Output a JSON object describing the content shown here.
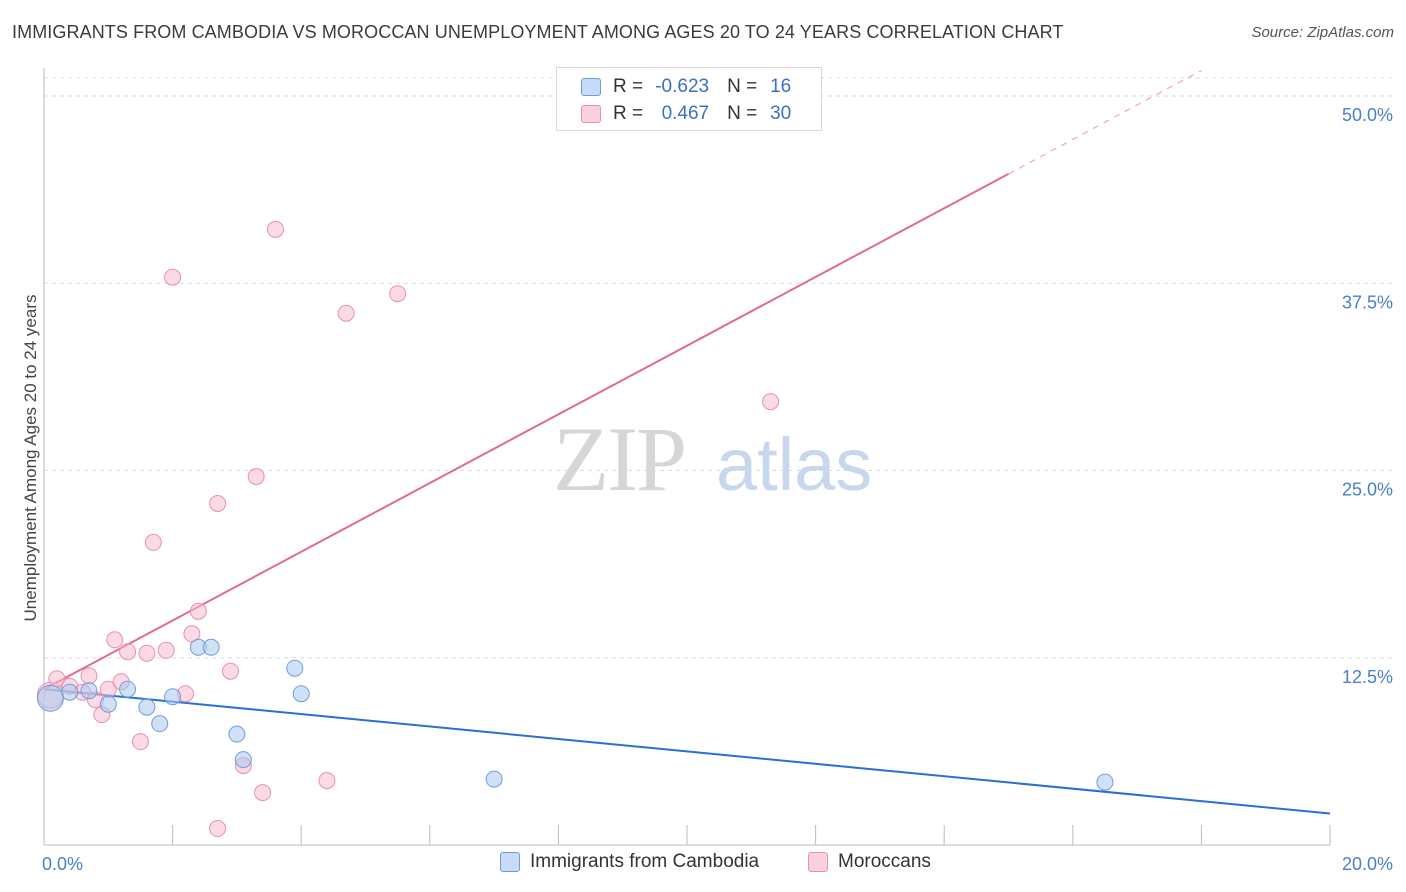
{
  "title": "IMMIGRANTS FROM CAMBODIA VS MOROCCAN UNEMPLOYMENT AMONG AGES 20 TO 24 YEARS CORRELATION CHART",
  "source": "Source: ZipAtlas.com",
  "watermark": {
    "zip": "ZIP",
    "atlas": "atlas"
  },
  "legend": {
    "series1": {
      "r_label": "R =",
      "r_value": "-0.623",
      "n_label": "N =",
      "n_value": "16"
    },
    "series2": {
      "r_label": "R =",
      "r_value": "0.467",
      "n_label": "N =",
      "n_value": "30"
    }
  },
  "bottom_legend": {
    "series1": "Immigrants from Cambodia",
    "series2": "Moroccans"
  },
  "colors": {
    "cambodia_fill": "#a9c8f0",
    "cambodia_stroke": "#6f9fd8",
    "cambodia_line": "#2b6fd0",
    "moroccan_fill": "#f7bcd0",
    "moroccan_stroke": "#e890ae",
    "moroccan_line": "#e06a94",
    "tick_text": "#4a7fc8"
  },
  "chart_data": {
    "type": "scatter",
    "xlabel": "",
    "ylabel": "Unemployment Among Ages 20 to 24 years",
    "xlim": [
      0,
      20
    ],
    "ylim": [
      0,
      50
    ],
    "x_tick_labels": [
      "0.0%",
      "20.0%"
    ],
    "y_ticks": [
      12.5,
      25.0,
      37.5,
      50.0
    ],
    "y_tick_labels": [
      "12.5%",
      "25.0%",
      "37.5%",
      "50.0%"
    ],
    "series": [
      {
        "name": "Immigrants from Cambodia",
        "points": [
          [
            0.1,
            9.8
          ],
          [
            0.4,
            10.2
          ],
          [
            0.7,
            10.3
          ],
          [
            1.0,
            9.4
          ],
          [
            1.3,
            10.4
          ],
          [
            1.6,
            9.2
          ],
          [
            1.8,
            8.1
          ],
          [
            2.0,
            9.9
          ],
          [
            2.4,
            13.2
          ],
          [
            2.6,
            13.2
          ],
          [
            3.0,
            7.4
          ],
          [
            3.1,
            5.7
          ],
          [
            3.9,
            11.8
          ],
          [
            4.0,
            10.1
          ],
          [
            7.0,
            4.4
          ],
          [
            16.5,
            4.2
          ]
        ],
        "trend": {
          "x0": 0,
          "y0": 10.4,
          "x1": 20,
          "y1": 2.1
        }
      },
      {
        "name": "Moroccans",
        "points": [
          [
            0.1,
            10.0
          ],
          [
            0.2,
            11.1
          ],
          [
            0.4,
            10.6
          ],
          [
            0.6,
            10.2
          ],
          [
            0.7,
            11.3
          ],
          [
            0.8,
            9.7
          ],
          [
            0.9,
            8.7
          ],
          [
            1.0,
            10.4
          ],
          [
            1.1,
            13.7
          ],
          [
            1.2,
            10.9
          ],
          [
            1.3,
            12.9
          ],
          [
            1.5,
            6.9
          ],
          [
            1.6,
            12.8
          ],
          [
            1.7,
            20.2
          ],
          [
            1.9,
            13.0
          ],
          [
            2.0,
            37.9
          ],
          [
            2.2,
            10.1
          ],
          [
            2.3,
            14.1
          ],
          [
            2.4,
            15.6
          ],
          [
            2.7,
            22.8
          ],
          [
            2.7,
            1.1
          ],
          [
            2.9,
            11.6
          ],
          [
            3.1,
            5.3
          ],
          [
            3.3,
            24.6
          ],
          [
            3.4,
            3.5
          ],
          [
            3.6,
            41.1
          ],
          [
            4.4,
            4.3
          ],
          [
            4.7,
            35.5
          ],
          [
            5.5,
            36.8
          ],
          [
            11.3,
            29.6
          ]
        ],
        "trend": {
          "x0": 0,
          "y0": 10.4,
          "x1": 15,
          "y1": 44.8
        },
        "trend_dashed": {
          "x0": 15,
          "y0": 44.8,
          "x1": 18.0,
          "y1": 51.7
        }
      }
    ]
  }
}
